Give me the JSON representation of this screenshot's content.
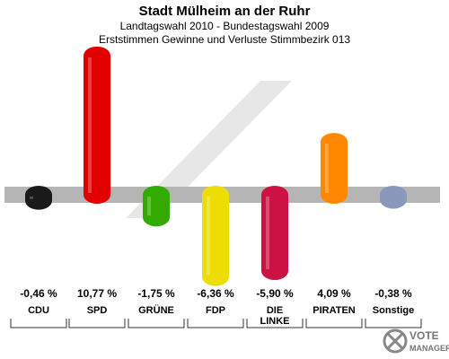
{
  "chart_data": {
    "type": "bar",
    "title": "Stadt Mülheim an der Ruhr",
    "subtitle": "Landtagswahl 2010 - Bundestagswahl 2009",
    "subtitle2": "Erststimmen Gewinne und Verluste Stimmbezirk 013",
    "ylim": [
      -10,
      15
    ],
    "grid": false,
    "series": [
      {
        "categories": [
          "CDU",
          "SPD",
          "GRÜNE",
          "FDP",
          "DIE LINKE",
          "PIRATEN",
          "Sonstige"
        ],
        "values": [
          -0.46,
          10.77,
          -1.75,
          -6.36,
          -5.9,
          4.09,
          -0.38
        ],
        "labels": [
          "-0,46 %",
          "10,77 %",
          "-1,75 %",
          "-6,36 %",
          "-5,90 %",
          "4,09 %",
          "-0,38 %"
        ],
        "colors": [
          "#1a1a1a",
          "#e00000",
          "#33aa00",
          "#eedd00",
          "#cc1144",
          "#ff8800",
          "#8899bb"
        ]
      }
    ],
    "category_lines": [
      [
        "CDU"
      ],
      [
        "SPD"
      ],
      [
        "GRÜNE"
      ],
      [
        "FDP"
      ],
      [
        "DIE",
        "LINKE"
      ],
      [
        "PIRATEN"
      ],
      [
        "Sonstige"
      ]
    ]
  },
  "logo": {
    "line1": "VOTE",
    "line2": "MANAGER"
  }
}
